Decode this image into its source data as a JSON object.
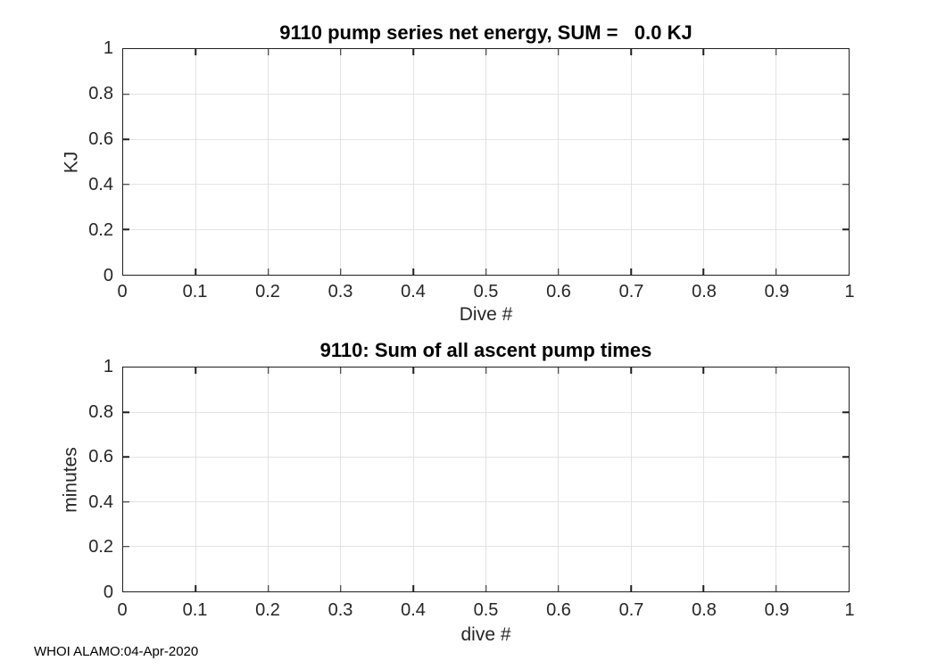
{
  "figure": {
    "annotation": "WHOI ALAMO:04-Apr-2020",
    "background": "#ffffff"
  },
  "style": {
    "axis_color": "#1f1f1f",
    "axis_text_color": "#262626",
    "title_color": "#000000",
    "grid_color": "#e3e3e3",
    "background": "#ffffff"
  },
  "chart_data": [
    {
      "type": "line",
      "title": "9110 pump series net energy, SUM =   0.0 KJ",
      "xlabel": "Dive #",
      "ylabel": "KJ",
      "xlim": [
        0,
        1
      ],
      "ylim": [
        0,
        1
      ],
      "xticks": [
        0,
        0.1,
        0.2,
        0.3,
        0.4,
        0.5,
        0.6,
        0.7,
        0.8,
        0.9,
        1
      ],
      "xtick_labels": [
        "0",
        "0.1",
        "0.2",
        "0.3",
        "0.4",
        "0.5",
        "0.6",
        "0.7",
        "0.8",
        "0.9",
        "1"
      ],
      "yticks": [
        0,
        0.2,
        0.4,
        0.6,
        0.8,
        1
      ],
      "ytick_labels": [
        "0",
        "0.2",
        "0.4",
        "0.6",
        "0.8",
        "1"
      ],
      "grid": true,
      "series": []
    },
    {
      "type": "line",
      "title": "9110: Sum of all ascent pump times",
      "xlabel": "dive #",
      "ylabel": "minutes",
      "xlim": [
        0,
        1
      ],
      "ylim": [
        0,
        1
      ],
      "xticks": [
        0,
        0.1,
        0.2,
        0.3,
        0.4,
        0.5,
        0.6,
        0.7,
        0.8,
        0.9,
        1
      ],
      "xtick_labels": [
        "0",
        "0.1",
        "0.2",
        "0.3",
        "0.4",
        "0.5",
        "0.6",
        "0.7",
        "0.8",
        "0.9",
        "1"
      ],
      "yticks": [
        0,
        0.2,
        0.4,
        0.6,
        0.8,
        1
      ],
      "ytick_labels": [
        "0",
        "0.2",
        "0.4",
        "0.6",
        "0.8",
        "1"
      ],
      "grid": true,
      "series": []
    }
  ]
}
